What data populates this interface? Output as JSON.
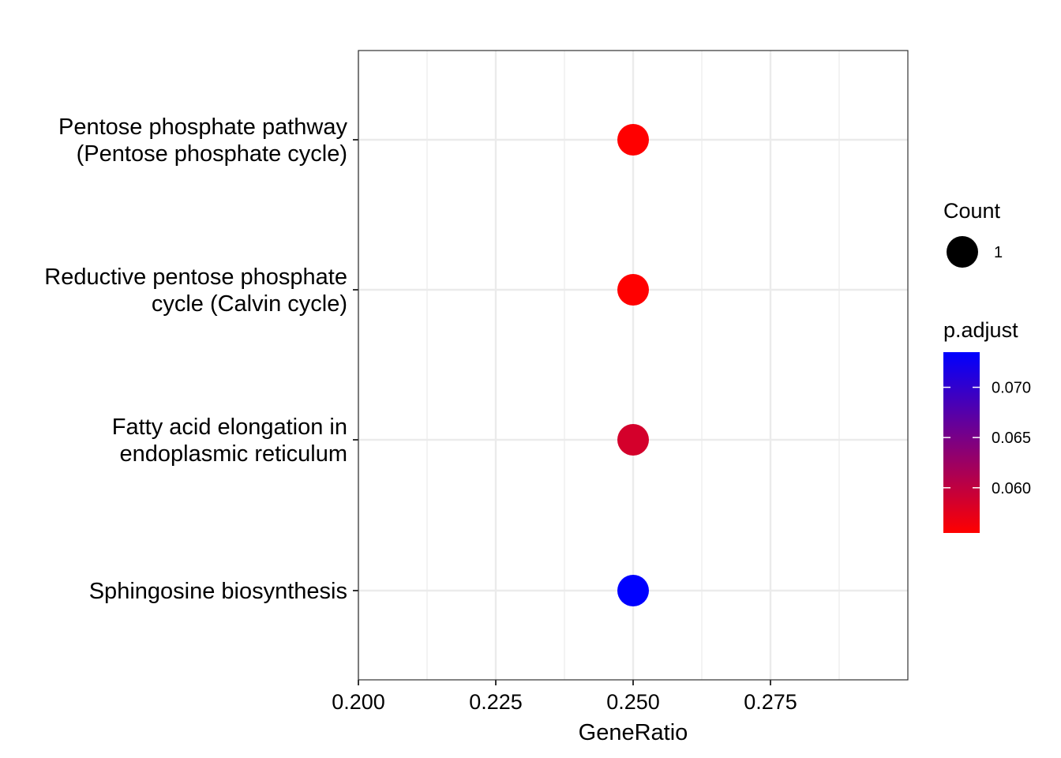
{
  "chart_data": {
    "type": "scatter",
    "xlabel": "GeneRatio",
    "ylabel": "",
    "xlim": [
      0.2,
      0.3
    ],
    "x_ticks": [
      {
        "value": 0.2,
        "label": "0.200"
      },
      {
        "value": 0.225,
        "label": "0.225"
      },
      {
        "value": 0.25,
        "label": "0.250"
      },
      {
        "value": 0.275,
        "label": "0.275"
      }
    ],
    "categories": [
      {
        "lines": [
          "Pentose phosphate pathway",
          "(Pentose phosphate cycle)"
        ]
      },
      {
        "lines": [
          "Reductive pentose phosphate",
          "cycle (Calvin cycle)"
        ]
      },
      {
        "lines": [
          "Fatty acid elongation in",
          "endoplasmic reticulum"
        ]
      },
      {
        "lines": [
          "Sphingosine biosynthesis"
        ]
      }
    ],
    "points": [
      {
        "category_index": 0,
        "x": 0.25,
        "count": 1,
        "p_adjust": 0.0555
      },
      {
        "category_index": 1,
        "x": 0.25,
        "count": 1,
        "p_adjust": 0.0555
      },
      {
        "category_index": 2,
        "x": 0.25,
        "count": 1,
        "p_adjust": 0.0585
      },
      {
        "category_index": 3,
        "x": 0.25,
        "count": 1,
        "p_adjust": 0.0735
      }
    ],
    "grid": true,
    "size_legend": {
      "title": "Count",
      "entries": [
        {
          "label": "1",
          "count": 1
        }
      ]
    },
    "color_legend": {
      "title": "p.adjust",
      "range": [
        0.0555,
        0.0735
      ],
      "low_color": "#ff0000",
      "high_color": "#0000ff",
      "ticks": [
        {
          "value": 0.06,
          "label": "0.060"
        },
        {
          "value": 0.065,
          "label": "0.065"
        },
        {
          "value": 0.07,
          "label": "0.070"
        }
      ]
    },
    "legend_position": "right"
  }
}
